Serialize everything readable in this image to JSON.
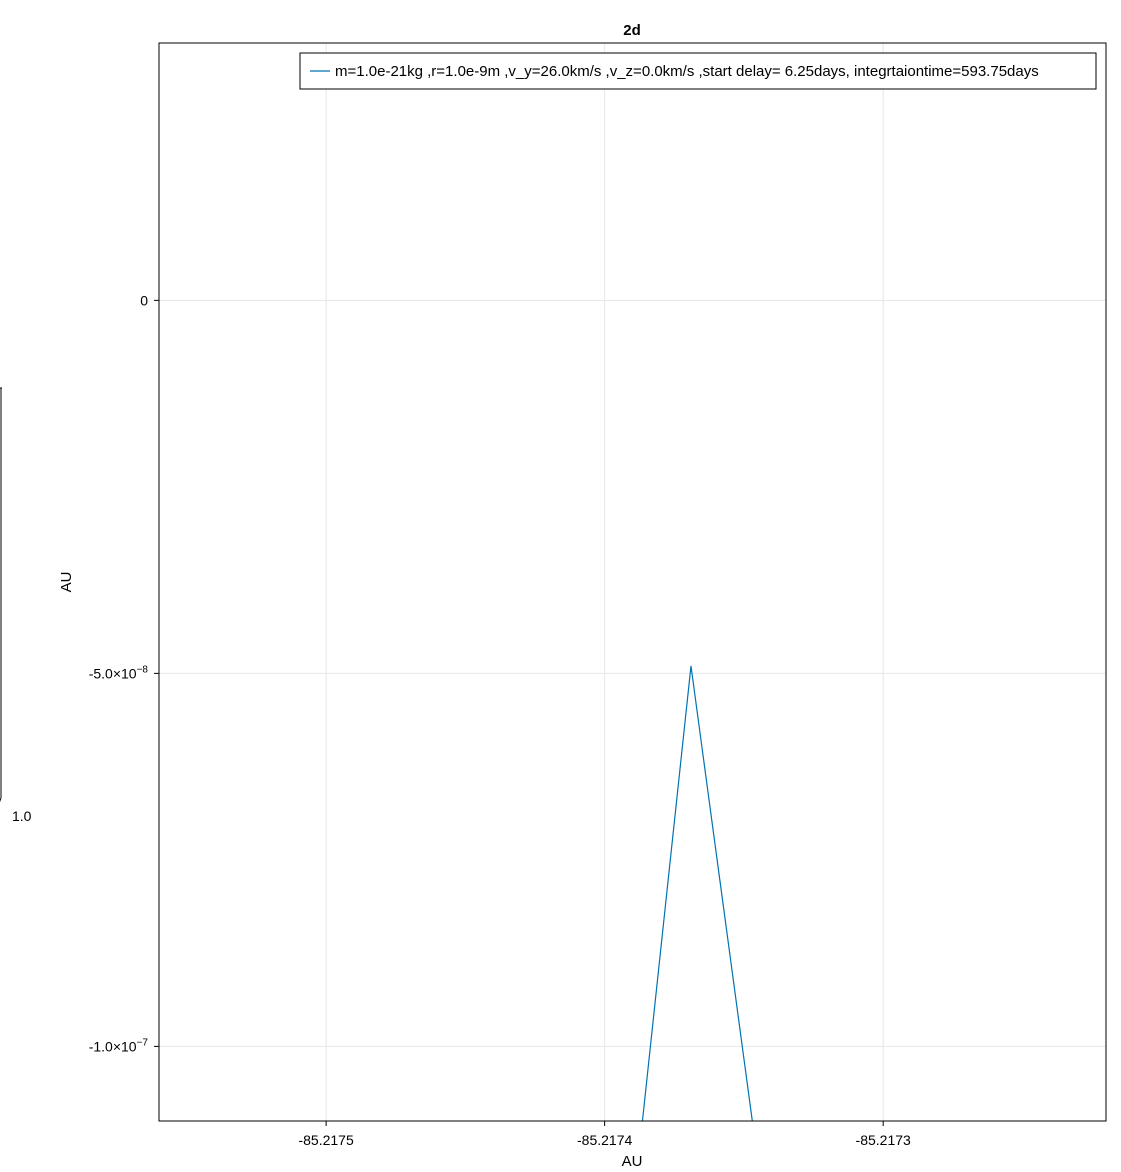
{
  "chart_data": {
    "type": "line",
    "title": "2d",
    "xlabel": "AU",
    "ylabel": "AU",
    "grid": true,
    "legend_position": "top-right",
    "xlim": [
      -85.21756,
      -85.21722
    ],
    "ylim": [
      -1.1e-07,
      3.45e-08
    ],
    "x_ticks": [
      {
        "value": -85.2175,
        "label": "-85.2175"
      },
      {
        "value": -85.2174,
        "label": "-85.2174"
      },
      {
        "value": -85.2173,
        "label": "-85.2173"
      }
    ],
    "y_ticks": [
      {
        "value": 0,
        "label": "0",
        "mantissa": "",
        "exponent": ""
      },
      {
        "value": -5e-08,
        "label": "-5.0×10⁻⁸",
        "mantissa": "-5.0×10",
        "exponent": "−8"
      },
      {
        "value": -1e-07,
        "label": "-1.0×10⁻⁷",
        "mantissa": "-1.0×10",
        "exponent": "−7"
      }
    ],
    "series": [
      {
        "name": "m=1.0e-21kg ,r=1.0e-9m ,v_y=26.0km/s ,v_z=0.0km/s ,start delay= 6.25days, integrtaiontime=593.75days",
        "color": "#0072b2",
        "x": [
          -85.217388,
          -85.217369,
          -85.217345
        ],
        "y": [
          -1.155e-07,
          -4.9e-08,
          -1.155e-07
        ]
      }
    ]
  },
  "stray_label": "1.0"
}
